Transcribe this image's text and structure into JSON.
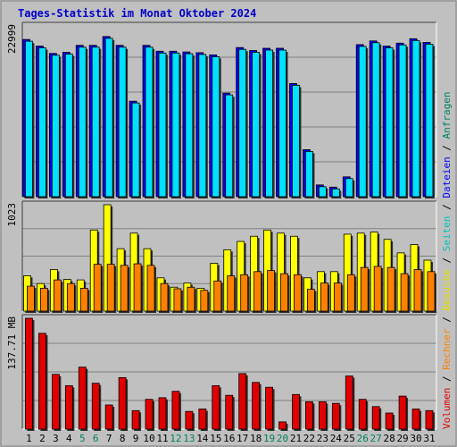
{
  "title": "Tages-Statistik im Monat Oktober 2024",
  "colors": {
    "title": "#0000cc",
    "anfragen": "#00e0ff",
    "dateien": "#0000ff",
    "seiten": "#00c0c0",
    "besuche": "#ffff00",
    "rechner": "#ff8000",
    "volumen": "#e00000",
    "weekend": "#008060"
  },
  "chart_data": [
    {
      "type": "bar",
      "panel": "hits",
      "ymax_label": "22999",
      "ylim": [
        0,
        22999
      ],
      "series": [
        {
          "name": "Anfragen",
          "values": [
            21400,
            20500,
            19500,
            19650,
            20600,
            20600,
            21800,
            20600,
            13000,
            20600,
            19800,
            19800,
            19700,
            19600,
            19300,
            14100,
            20300,
            19900,
            20200,
            20200,
            15400,
            6400,
            1600,
            1300,
            2700,
            20700,
            21200,
            20500,
            20900,
            21500,
            21000
          ]
        },
        {
          "name": "Dateien",
          "values": [
            21400,
            20500,
            19500,
            19650,
            20600,
            20600,
            21800,
            20600,
            13000,
            20600,
            19800,
            19800,
            19700,
            19600,
            19300,
            14100,
            20300,
            19900,
            20200,
            20200,
            15400,
            6400,
            1600,
            1300,
            2700,
            20700,
            21200,
            20500,
            20900,
            21500,
            21000
          ]
        }
      ]
    },
    {
      "type": "bar",
      "panel": "visits",
      "ymax_label": "1023",
      "ylim": [
        0,
        1023
      ],
      "series": [
        {
          "name": "Seiten",
          "values": [
            0,
            0,
            0,
            0,
            0,
            0,
            0,
            0,
            0,
            0,
            0,
            0,
            0,
            0,
            0,
            0,
            0,
            0,
            0,
            0,
            0,
            0,
            0,
            0,
            0,
            0,
            0,
            0,
            0,
            0,
            0
          ]
        },
        {
          "name": "Besuche",
          "values": [
            340,
            265,
            400,
            305,
            300,
            780,
            1023,
            600,
            750,
            600,
            320,
            230,
            270,
            220,
            460,
            590,
            670,
            720,
            780,
            750,
            720,
            320,
            380,
            380,
            740,
            750,
            760,
            690,
            560,
            640,
            490
          ]
        },
        {
          "name": "Rechner",
          "values": [
            240,
            220,
            300,
            265,
            220,
            450,
            450,
            440,
            455,
            440,
            265,
            215,
            230,
            200,
            290,
            340,
            350,
            380,
            390,
            360,
            350,
            210,
            270,
            270,
            350,
            420,
            430,
            420,
            360,
            400,
            380
          ]
        }
      ]
    },
    {
      "type": "bar",
      "panel": "volume",
      "ymax_label": "137.71 MB",
      "ylim": [
        0,
        137.71
      ],
      "series": [
        {
          "name": "Volumen",
          "values": [
            137.7,
            119,
            68,
            54,
            77,
            57,
            30,
            64,
            23,
            37,
            39,
            47,
            22,
            25,
            54,
            42,
            69,
            58,
            52,
            9,
            43,
            34,
            34,
            32,
            66,
            37,
            28,
            20,
            41,
            25,
            23
          ]
        }
      ]
    }
  ],
  "x_labels": [
    "1",
    "2",
    "3",
    "4",
    "5",
    "6",
    "7",
    "8",
    "9",
    "10",
    "11",
    "12",
    "13",
    "14",
    "15",
    "16",
    "17",
    "18",
    "19",
    "20",
    "21",
    "22",
    "23",
    "24",
    "25",
    "26",
    "27",
    "28",
    "29",
    "30",
    "31"
  ],
  "weekend_days": [
    "5",
    "6",
    "12",
    "13",
    "19",
    "20",
    "26",
    "27"
  ],
  "right_legend": [
    {
      "text": "Volumen",
      "color": "#e00000"
    },
    {
      "text": " / ",
      "color": "#000000"
    },
    {
      "text": "Rechner",
      "color": "#ff8000"
    },
    {
      "text": " / ",
      "color": "#000000"
    },
    {
      "text": "Besuche",
      "color": "#e0e000"
    },
    {
      "text": " / ",
      "color": "#000000"
    },
    {
      "text": "Seiten",
      "color": "#00c0c0"
    },
    {
      "text": " / ",
      "color": "#000000"
    },
    {
      "text": "Dateien",
      "color": "#0000ff"
    },
    {
      "text": " / ",
      "color": "#000000"
    },
    {
      "text": "Anfragen",
      "color": "#008060"
    }
  ]
}
